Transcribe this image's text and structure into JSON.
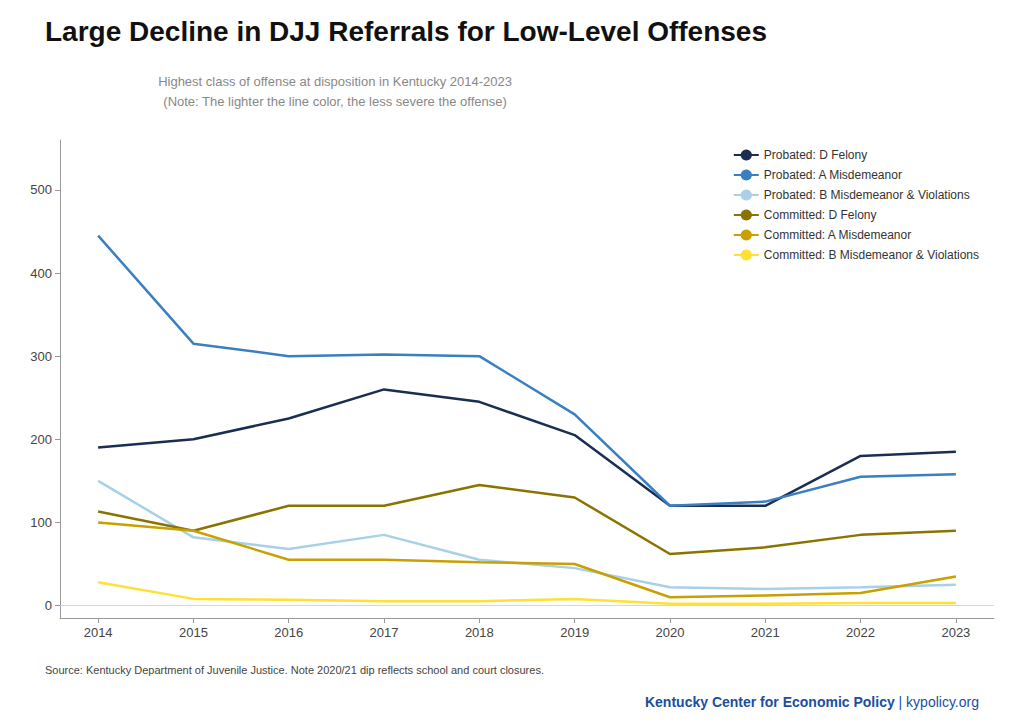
{
  "chart_data": {
    "type": "line",
    "title": "Large Decline in DJJ Referrals for Low-Level Offenses",
    "subtitle": "Highest class of offense at disposition in Kentucky 2014-2023\n(Note: The lighter the line color, the less severe the offense)",
    "annotations": [
      "Source: Kentucky Department of Juvenile Justice. Note 2020/21 dip reflects school and court closures.",
      "Kentucky Center for Economic Policy",
      "| kypolicy.org"
    ],
    "x": [
      2014,
      2015,
      2016,
      2017,
      2018,
      2019,
      2020,
      2021,
      2022,
      2023
    ],
    "series": [
      {
        "name": "Probated: D Felony",
        "color": "#1a2e52",
        "values": [
          190,
          200,
          225,
          260,
          245,
          205,
          120,
          120,
          180,
          185
        ]
      },
      {
        "name": "Probated: A Misdemeanor",
        "color": "#3a7fc1",
        "values": [
          445,
          315,
          300,
          302,
          300,
          230,
          120,
          125,
          155,
          158
        ]
      },
      {
        "name": "Probated: B Misdemeanor & Violations",
        "color": "#a8d0e8",
        "values": [
          150,
          82,
          68,
          85,
          55,
          45,
          22,
          20,
          22,
          25
        ]
      },
      {
        "name": "Committed: D Felony",
        "color": "#8b7300",
        "values": [
          113,
          90,
          120,
          120,
          145,
          130,
          62,
          70,
          85,
          90
        ]
      },
      {
        "name": "Committed: A Misdemeanor",
        "color": "#c8a000",
        "values": [
          100,
          90,
          55,
          55,
          52,
          50,
          10,
          12,
          15,
          35
        ]
      },
      {
        "name": "Committed: B Misdemeanor & Violations",
        "color": "#ffe033",
        "values": [
          28,
          8,
          7,
          5,
          5,
          8,
          2,
          2,
          3,
          3
        ]
      }
    ],
    "xlim": [
      2013.6,
      2023.4
    ],
    "xticks": [
      2014,
      2015,
      2016,
      2017,
      2018,
      2019,
      2020,
      2021,
      2022,
      2023
    ],
    "ylim": [
      -15,
      560
    ],
    "yticks": [
      0,
      100,
      200,
      300,
      400,
      500
    ],
    "grid": false,
    "legend": "upper right"
  }
}
